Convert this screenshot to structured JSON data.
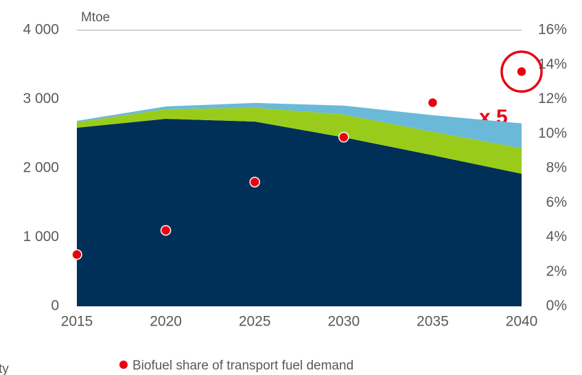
{
  "chart_data": {
    "type": "stacked_area_scatter",
    "y_axis_label": "Mtoe",
    "x": [
      2015,
      2020,
      2025,
      2030,
      2035,
      2040
    ],
    "xlim": [
      2015,
      2040
    ],
    "xticks": [
      2015,
      2020,
      2025,
      2030,
      2035,
      2040
    ],
    "ylim": [
      0,
      4000
    ],
    "yticks": [
      0,
      {
        "value": 1000,
        "label": "1 000"
      },
      {
        "value": 2000,
        "label": "2 000"
      },
      {
        "value": 3000,
        "label": "3 000"
      },
      {
        "value": 4000,
        "label": "4 000"
      }
    ],
    "y2lim": [
      0,
      16
    ],
    "y2ticks": [
      {
        "value": 0,
        "label": "0%"
      },
      {
        "value": 2,
        "label": "2%"
      },
      {
        "value": 4,
        "label": "4%"
      },
      {
        "value": 6,
        "label": "6%"
      },
      {
        "value": 8,
        "label": "8%"
      },
      {
        "value": 10,
        "label": "10%"
      },
      {
        "value": 12,
        "label": "12%"
      },
      {
        "value": 14,
        "label": "14%"
      },
      {
        "value": 16,
        "label": "16%"
      }
    ],
    "series": [
      {
        "color": "#003057",
        "values": [
          2587,
          2716,
          2677,
          2448,
          2189,
          1920
        ]
      },
      {
        "color": "#99cc1a",
        "values": [
          80,
          140,
          200,
          330,
          340,
          370
        ]
      },
      {
        "color": "#6bb9d8",
        "values": [
          20,
          40,
          70,
          130,
          240,
          360
        ]
      },
      {
        "name": "Biofuel share of transport fuel demand",
        "color": "#e8000f",
        "axis": "y2",
        "values": [
          3.0,
          4.4,
          7.2,
          9.8,
          11.8,
          13.6
        ]
      }
    ],
    "legend_cut_text": "ty",
    "annotation": "x 5"
  }
}
